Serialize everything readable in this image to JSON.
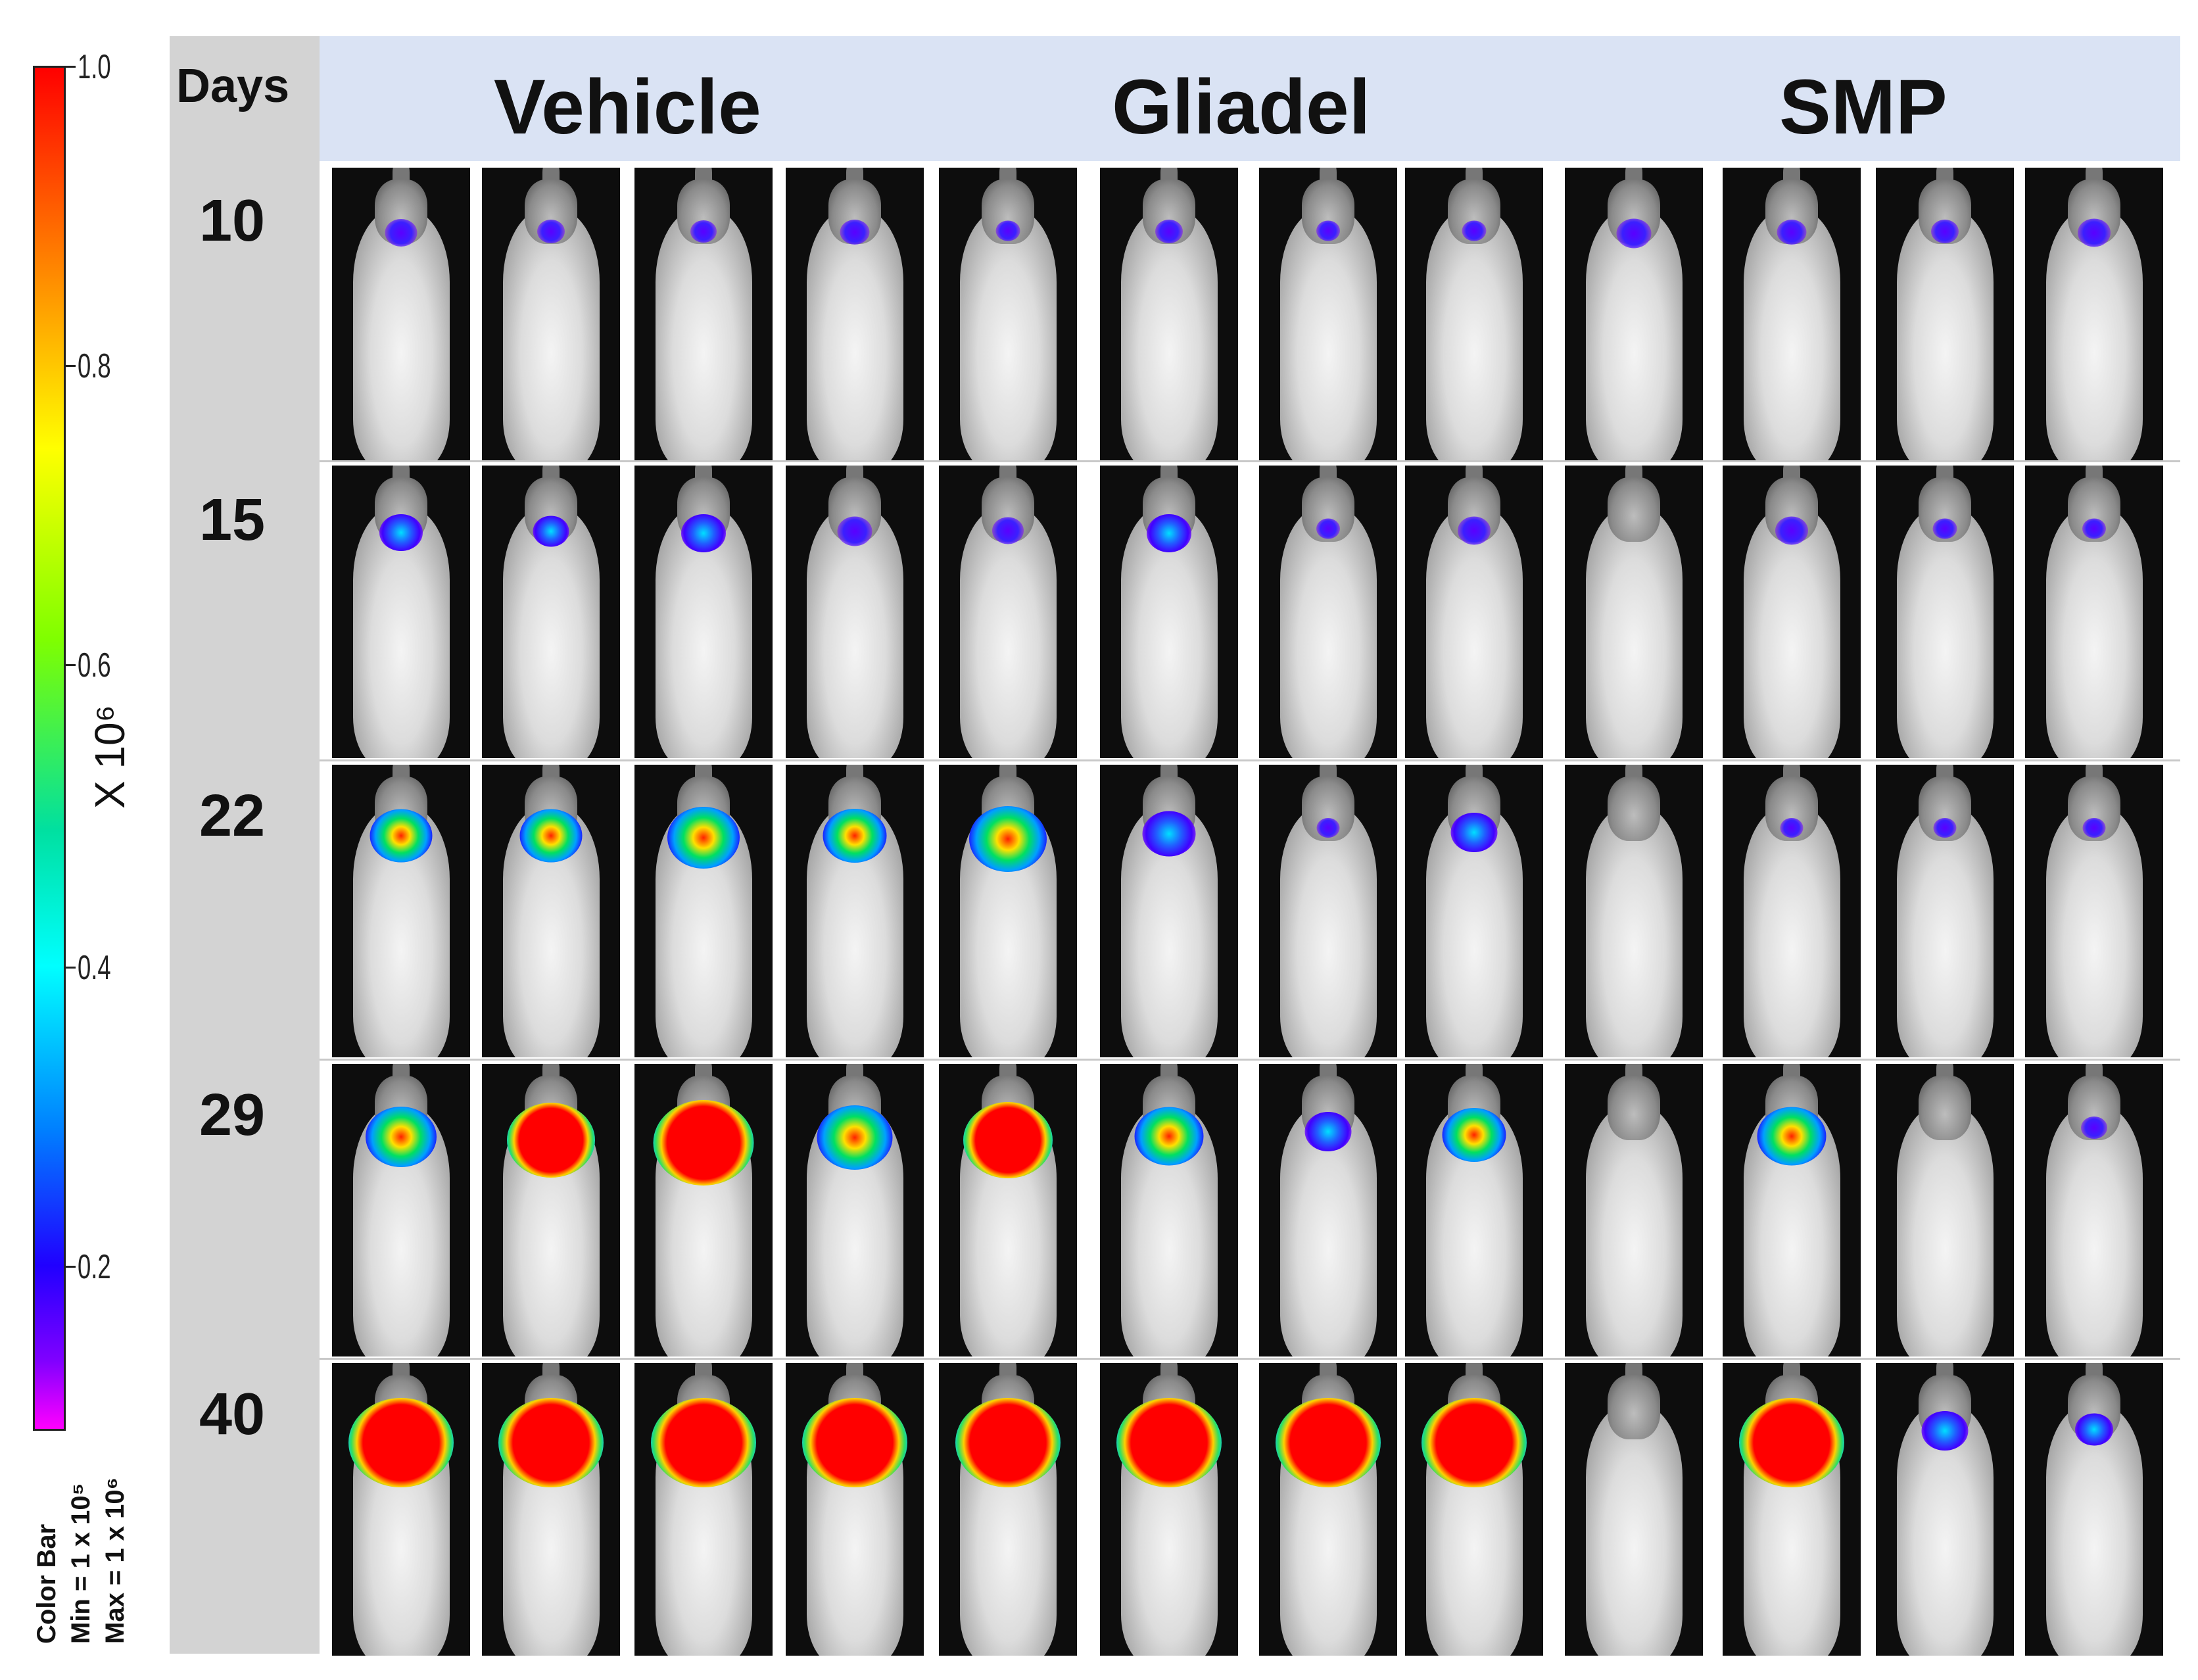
{
  "colorbar": {
    "ticks": [
      "1.0",
      "0.8",
      "0.6",
      "0.4",
      "0.2"
    ],
    "unit": "X 10⁶",
    "caption": [
      "Color  Bar",
      "Min = 1 x 10⁵",
      "Max = 1 x 10⁶"
    ]
  },
  "header": {
    "days_label": "Days",
    "groups": [
      "Vehicle",
      "Gliadel",
      "SMP"
    ]
  },
  "days": [
    "10",
    "15",
    "22",
    "29",
    "40"
  ],
  "signal_intensity": [
    [
      0.15,
      0.1,
      0.08,
      0.12,
      0.06,
      0.1,
      0.05,
      0.06,
      0.18,
      0.12,
      0.1,
      0.16
    ],
    [
      0.28,
      0.2,
      0.3,
      0.18,
      0.14,
      0.3,
      0.05,
      0.16,
      0.0,
      0.16,
      0.06,
      0.05
    ],
    [
      0.5,
      0.5,
      0.62,
      0.52,
      0.68,
      0.4,
      0.04,
      0.32,
      0.0,
      0.04,
      0.04,
      0.04
    ],
    [
      0.6,
      0.8,
      0.95,
      0.66,
      0.82,
      0.58,
      0.32,
      0.52,
      0.0,
      0.58,
      0.0,
      0.08
    ],
    [
      1.0,
      1.0,
      1.0,
      1.0,
      1.0,
      1.0,
      1.0,
      1.0,
      0.0,
      1.0,
      0.32,
      0.22
    ]
  ]
}
